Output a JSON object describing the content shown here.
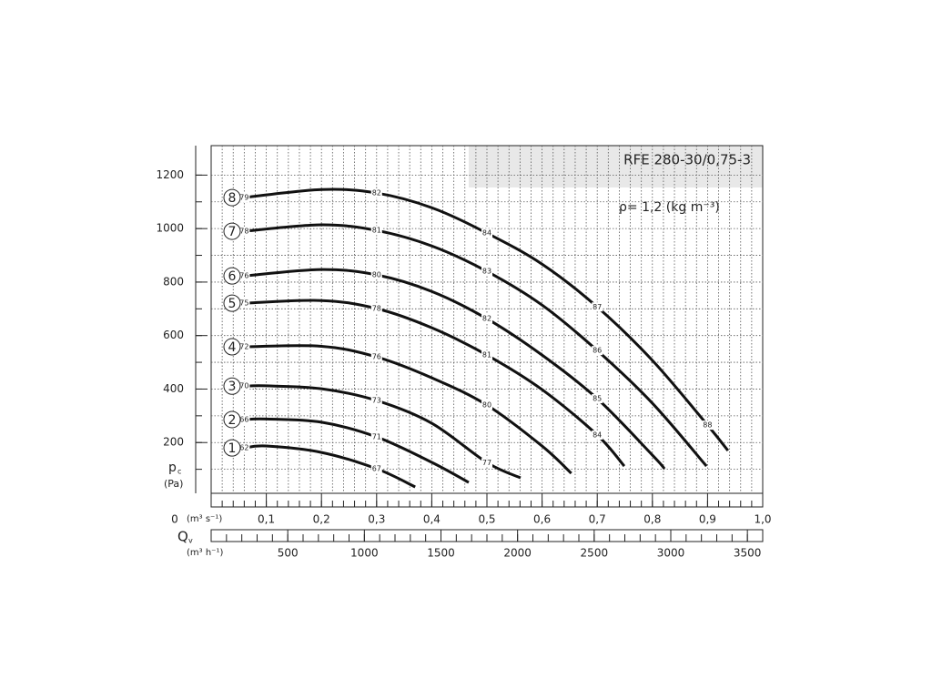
{
  "chart_data": {
    "type": "line",
    "title": "RFE 280-30/0,75-3",
    "annotation": "ρ= 1,2 (kg m⁻³)",
    "y_label": {
      "symbol": "p",
      "subscript": "c",
      "unit": "(Pa)"
    },
    "x_label": "(m³ s⁻¹)",
    "x2_label": {
      "symbol": "Q",
      "subscript": "v",
      "unit": "(m³ h⁻¹)"
    },
    "xlim": [
      0,
      1.0
    ],
    "xticks": [
      0,
      {
        "value": 0.1,
        "label": "0,1"
      },
      {
        "value": 0.2,
        "label": "0,2"
      },
      {
        "value": 0.3,
        "label": "0,3"
      },
      {
        "value": 0.4,
        "label": "0,4"
      },
      {
        "value": 0.5,
        "label": "0,5"
      },
      {
        "value": 0.6,
        "label": "0,6"
      },
      {
        "value": 0.7,
        "label": "0,7"
      },
      {
        "value": 0.8,
        "label": "0,8"
      },
      {
        "value": 0.9,
        "label": "0,9"
      },
      {
        "value": 1.0,
        "label": "1,0"
      }
    ],
    "x2lim": [
      0,
      3600
    ],
    "x2ticks": [
      500,
      1000,
      1500,
      2000,
      2500,
      3000,
      3500
    ],
    "ylim": [
      0,
      1300
    ],
    "yticks": [
      200,
      400,
      600,
      800,
      1000,
      1200
    ],
    "grid": true,
    "x_minor_step": 0.02,
    "y_minor_step": 100,
    "color": "#111111",
    "series": [
      {
        "name": "1",
        "x": [
          0.06,
          0.1,
          0.2,
          0.3,
          0.37
        ],
        "values": [
          180,
          187,
          163,
          102,
          34
        ],
        "labels": [
          "62",
          null,
          null,
          "67",
          null
        ]
      },
      {
        "name": "2",
        "x": [
          0.06,
          0.1,
          0.2,
          0.3,
          0.4,
          0.467
        ],
        "values": [
          286,
          288,
          276,
          221,
          126,
          51
        ],
        "labels": [
          "66",
          null,
          null,
          "71",
          null,
          null
        ]
      },
      {
        "name": "3",
        "x": [
          0.06,
          0.1,
          0.2,
          0.3,
          0.4,
          0.5,
          0.561
        ],
        "values": [
          411,
          412,
          401,
          357,
          272,
          125,
          68
        ],
        "labels": [
          "70",
          null,
          null,
          "73",
          null,
          "77",
          null
        ]
      },
      {
        "name": "4",
        "x": [
          0.06,
          0.2,
          0.3,
          0.4,
          0.5,
          0.6,
          0.653
        ],
        "values": [
          558,
          560,
          520,
          442,
          340,
          187,
          85
        ],
        "labels": [
          "72",
          null,
          "76",
          null,
          "80",
          null,
          null
        ]
      },
      {
        "name": "5",
        "x": [
          0.06,
          0.2,
          0.3,
          0.4,
          0.5,
          0.6,
          0.7,
          0.749
        ],
        "values": [
          721,
          731,
          701,
          629,
          527,
          398,
          228,
          112
        ],
        "labels": [
          "75",
          null,
          "78",
          null,
          "81",
          null,
          "84",
          null
        ]
      },
      {
        "name": "6",
        "x": [
          0.06,
          0.2,
          0.3,
          0.4,
          0.5,
          0.6,
          0.7,
          0.8,
          0.822
        ],
        "values": [
          823,
          847,
          827,
          765,
          663,
          527,
          364,
          153,
          102
        ],
        "labels": [
          "76",
          null,
          "80",
          null,
          "82",
          null,
          "85",
          null,
          null
        ]
      },
      {
        "name": "7",
        "x": [
          0.06,
          0.2,
          0.3,
          0.4,
          0.5,
          0.6,
          0.7,
          0.8,
          0.898
        ],
        "values": [
          990,
          1014,
          993,
          935,
          840,
          714,
          544,
          347,
          112
        ],
        "labels": [
          "78",
          null,
          "81",
          null,
          "83",
          null,
          "86",
          null,
          null
        ]
      },
      {
        "name": "8",
        "x": [
          0.06,
          0.2,
          0.3,
          0.4,
          0.5,
          0.6,
          0.7,
          0.8,
          0.9,
          0.937
        ],
        "values": [
          1116,
          1146,
          1133,
          1078,
          983,
          867,
          707,
          507,
          265,
          170
        ],
        "labels": [
          "79",
          null,
          "82",
          null,
          "84",
          null,
          "87",
          null,
          "88",
          null
        ]
      }
    ]
  }
}
